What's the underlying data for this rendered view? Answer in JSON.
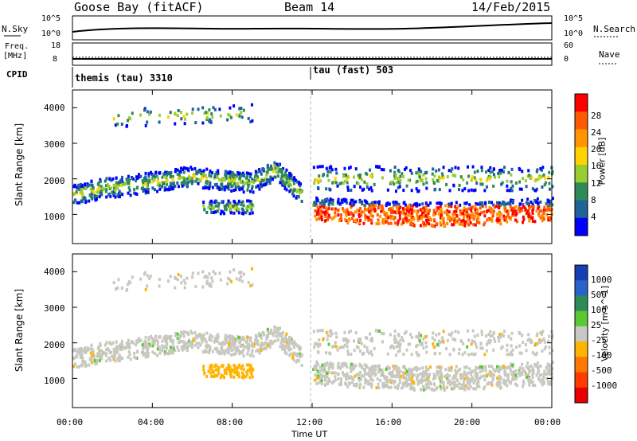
{
  "header": {
    "station": "Goose Bay (fitACF)",
    "beam": "Beam 14",
    "date": "14/Feb/2015"
  },
  "noise_panel": {
    "left_label": "N.Sky",
    "right_label": "N.Search",
    "left_ticks": [
      "10^5",
      "10^0"
    ],
    "right_ticks": [
      "10^5",
      "10^0"
    ]
  },
  "freq_panel": {
    "left_label_line1": "Freq.",
    "left_label_line2": "[MHz]",
    "right_label": "Nave",
    "left_ticks": [
      "18",
      "8"
    ],
    "right_ticks": [
      "60",
      "0"
    ]
  },
  "cpid": {
    "label": "CPID",
    "modes": [
      {
        "name": "themis (tau) 3310",
        "start_hour": 0
      },
      {
        "name": "tau (fast) 503",
        "start_hour": 12
      }
    ]
  },
  "chart_data": [
    {
      "type": "heatmap",
      "name": "power",
      "ylabel": "Slant Range [km]",
      "colorbar_label": "Power [dB]",
      "colorbar_ticks": [
        "28",
        "24",
        "20",
        "16",
        "12",
        "8",
        "4"
      ],
      "colorbar_colors": [
        "#ff0000",
        "#ff5a00",
        "#ff9600",
        "#ffd200",
        "#9acd32",
        "#2e8b57",
        "#1e6496",
        "#0000ff"
      ],
      "xlim_hours": [
        0,
        24
      ],
      "ylim_km": [
        180,
        4500
      ],
      "yticks": [
        "1000",
        "2000",
        "3000",
        "4000"
      ]
    },
    {
      "type": "heatmap",
      "name": "velocity",
      "ylabel": "Slant Range [km]",
      "colorbar_label": "Velocity [m s^-1]",
      "colorbar_ticks": [
        "1000",
        "500",
        "100",
        "25",
        "-25",
        "-100",
        "-500",
        "-1000"
      ],
      "colorbar_colors": [
        "#1440b4",
        "#2864c8",
        "#2e8b57",
        "#5ac832",
        "#c8c8c0",
        "#ffb400",
        "#ff7800",
        "#ff3c00",
        "#e60000"
      ],
      "xlim_hours": [
        0,
        24
      ],
      "ylim_km": [
        180,
        4500
      ],
      "yticks": [
        "1000",
        "2000",
        "3000",
        "4000"
      ]
    }
  ],
  "xaxis": {
    "label": "Time UT",
    "ticks": [
      "00:00",
      "04:00",
      "08:00",
      "12:00",
      "16:00",
      "20:00",
      "00:00"
    ]
  }
}
